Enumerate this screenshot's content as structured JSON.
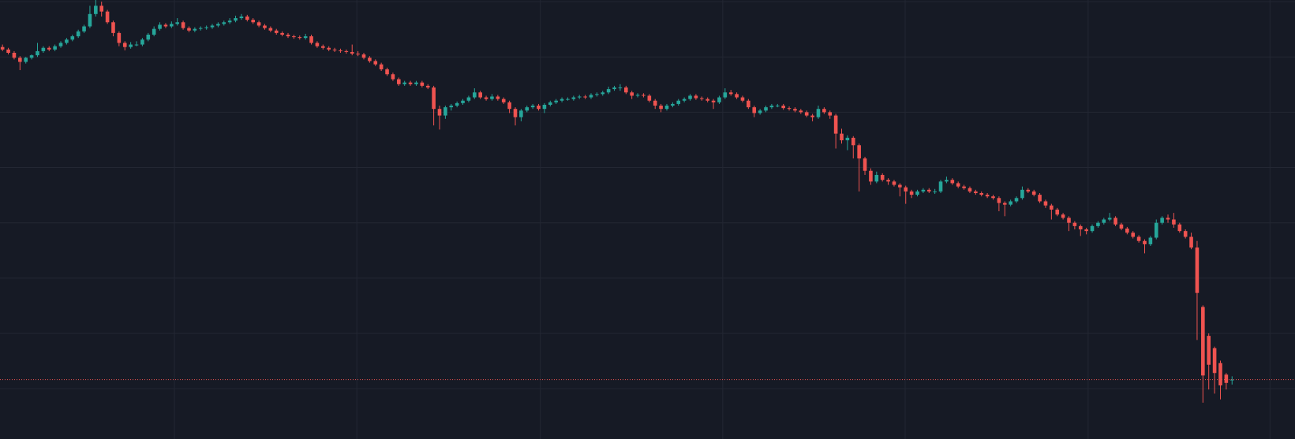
{
  "chart_data": {
    "type": "candlestick",
    "up_color": "#26a69a",
    "down_color": "#ef5350",
    "grid": true,
    "grid_color": "#232733",
    "last_price": 72,
    "last_price_color": "#ef5350",
    "xlim": [
      -0.43,
      221.8
    ],
    "xticks": [
      29.5,
      60.8,
      92.3,
      123.6,
      154.9,
      186.3,
      217.5
    ],
    "ylim": [
      0,
      532
    ],
    "yticks": [
      61,
      128,
      195,
      262,
      329,
      396,
      463,
      530
    ],
    "candles": [
      [
        475,
        478,
        470,
        472
      ],
      [
        472,
        474,
        466,
        468
      ],
      [
        468,
        470,
        460,
        462
      ],
      [
        462,
        464,
        447,
        457
      ],
      [
        457,
        463,
        455,
        462
      ],
      [
        462,
        466,
        460,
        465
      ],
      [
        465,
        480,
        463,
        470
      ],
      [
        470,
        476,
        468,
        474
      ],
      [
        474,
        476,
        470,
        472
      ],
      [
        472,
        478,
        470,
        476
      ],
      [
        476,
        482,
        474,
        480
      ],
      [
        480,
        486,
        478,
        484
      ],
      [
        484,
        490,
        482,
        488
      ],
      [
        488,
        496,
        486,
        494
      ],
      [
        494,
        502,
        492,
        500
      ],
      [
        500,
        525,
        498,
        515
      ],
      [
        515,
        532,
        512,
        525
      ],
      [
        525,
        530,
        512,
        518
      ],
      [
        518,
        520,
        503,
        505
      ],
      [
        505,
        507,
        488,
        492
      ],
      [
        492,
        494,
        476,
        480
      ],
      [
        480,
        482,
        471,
        475
      ],
      [
        475,
        481,
        473,
        478
      ],
      [
        478,
        482,
        476,
        478
      ],
      [
        478,
        486,
        476,
        484
      ],
      [
        484,
        492,
        482,
        490
      ],
      [
        490,
        500,
        488,
        497
      ],
      [
        497,
        505,
        495,
        502
      ],
      [
        502,
        504,
        498,
        500
      ],
      [
        500,
        506,
        498,
        503
      ],
      [
        503,
        510,
        501,
        505
      ],
      [
        505,
        507,
        496,
        498
      ],
      [
        498,
        500,
        493,
        495
      ],
      [
        495,
        499,
        493,
        497
      ],
      [
        497,
        500,
        495,
        498
      ],
      [
        498,
        501,
        496,
        499
      ],
      [
        499,
        503,
        497,
        501
      ],
      [
        501,
        505,
        499,
        503
      ],
      [
        503,
        507,
        501,
        505
      ],
      [
        505,
        510,
        503,
        507
      ],
      [
        507,
        513,
        505,
        510
      ],
      [
        510,
        515,
        508,
        512
      ],
      [
        512,
        514,
        506,
        508
      ],
      [
        508,
        510,
        503,
        505
      ],
      [
        505,
        507,
        499,
        501
      ],
      [
        501,
        503,
        496,
        498
      ],
      [
        498,
        500,
        493,
        495
      ],
      [
        495,
        497,
        490,
        492
      ],
      [
        492,
        494,
        488,
        490
      ],
      [
        490,
        492,
        486,
        488
      ],
      [
        488,
        490,
        485,
        487
      ],
      [
        487,
        489,
        484,
        486
      ],
      [
        486,
        491,
        484,
        488
      ],
      [
        488,
        490,
        478,
        480
      ],
      [
        480,
        482,
        474,
        476
      ],
      [
        476,
        478,
        472,
        474
      ],
      [
        474,
        476,
        470,
        472
      ],
      [
        472,
        474,
        469,
        471
      ],
      [
        471,
        473,
        468,
        470
      ],
      [
        470,
        472,
        467,
        469
      ],
      [
        469,
        478,
        465,
        467
      ],
      [
        467,
        470,
        464,
        466
      ],
      [
        466,
        468,
        460,
        462
      ],
      [
        462,
        464,
        456,
        458
      ],
      [
        458,
        460,
        452,
        454
      ],
      [
        454,
        456,
        446,
        448
      ],
      [
        448,
        450,
        440,
        442
      ],
      [
        442,
        444,
        434,
        436
      ],
      [
        436,
        438,
        428,
        430
      ],
      [
        430,
        434,
        428,
        432
      ],
      [
        432,
        434,
        428,
        430
      ],
      [
        430,
        434,
        428,
        432
      ],
      [
        432,
        434,
        426,
        428
      ],
      [
        428,
        430,
        424,
        426
      ],
      [
        426,
        428,
        380,
        400
      ],
      [
        400,
        404,
        375,
        392
      ],
      [
        392,
        404,
        388,
        402
      ],
      [
        402,
        406,
        398,
        404
      ],
      [
        404,
        409,
        402,
        407
      ],
      [
        407,
        412,
        405,
        410
      ],
      [
        410,
        416,
        408,
        414
      ],
      [
        414,
        425,
        412,
        420
      ],
      [
        420,
        422,
        412,
        414
      ],
      [
        414,
        416,
        410,
        412
      ],
      [
        412,
        418,
        410,
        415
      ],
      [
        415,
        417,
        410,
        412
      ],
      [
        412,
        414,
        406,
        408
      ],
      [
        408,
        410,
        395,
        400
      ],
      [
        400,
        402,
        380,
        390
      ],
      [
        390,
        400,
        385,
        398
      ],
      [
        398,
        404,
        396,
        402
      ],
      [
        402,
        406,
        400,
        404
      ],
      [
        404,
        406,
        398,
        400
      ],
      [
        400,
        407,
        395,
        405
      ],
      [
        405,
        410,
        403,
        408
      ],
      [
        408,
        412,
        406,
        410
      ],
      [
        410,
        414,
        408,
        412
      ],
      [
        412,
        414,
        410,
        412
      ],
      [
        412,
        416,
        410,
        414
      ],
      [
        414,
        417,
        412,
        415
      ],
      [
        415,
        417,
        412,
        414
      ],
      [
        414,
        419,
        412,
        417
      ],
      [
        417,
        420,
        415,
        418
      ],
      [
        418,
        422,
        416,
        420
      ],
      [
        420,
        427,
        418,
        424
      ],
      [
        424,
        428,
        422,
        426
      ],
      [
        426,
        430,
        422,
        426
      ],
      [
        426,
        428,
        418,
        420
      ],
      [
        420,
        422,
        412,
        416
      ],
      [
        416,
        419,
        414,
        417
      ],
      [
        417,
        419,
        414,
        416
      ],
      [
        416,
        418,
        408,
        410
      ],
      [
        410,
        412,
        400,
        404
      ],
      [
        404,
        406,
        396,
        400
      ],
      [
        400,
        406,
        398,
        404
      ],
      [
        404,
        408,
        402,
        406
      ],
      [
        406,
        412,
        404,
        410
      ],
      [
        410,
        414,
        408,
        412
      ],
      [
        412,
        418,
        410,
        416
      ],
      [
        416,
        418,
        411,
        413
      ],
      [
        413,
        415,
        410,
        412
      ],
      [
        412,
        414,
        408,
        410
      ],
      [
        410,
        412,
        400,
        408
      ],
      [
        408,
        416,
        406,
        414
      ],
      [
        414,
        425,
        412,
        420
      ],
      [
        420,
        423,
        416,
        418
      ],
      [
        418,
        420,
        412,
        414
      ],
      [
        414,
        416,
        408,
        410
      ],
      [
        410,
        412,
        400,
        402
      ],
      [
        402,
        404,
        390,
        395
      ],
      [
        395,
        400,
        393,
        398
      ],
      [
        398,
        404,
        396,
        402
      ],
      [
        402,
        406,
        400,
        404
      ],
      [
        404,
        406,
        402,
        404
      ],
      [
        404,
        406,
        399,
        401
      ],
      [
        401,
        403,
        398,
        400
      ],
      [
        400,
        402,
        396,
        398
      ],
      [
        398,
        400,
        394,
        396
      ],
      [
        396,
        398,
        390,
        392
      ],
      [
        392,
        394,
        385,
        390
      ],
      [
        390,
        404,
        388,
        400
      ],
      [
        400,
        402,
        394,
        396
      ],
      [
        396,
        398,
        388,
        392
      ],
      [
        392,
        394,
        352,
        370
      ],
      [
        370,
        376,
        358,
        362
      ],
      [
        362,
        368,
        350,
        365
      ],
      [
        365,
        367,
        340,
        356
      ],
      [
        356,
        358,
        300,
        340
      ],
      [
        340,
        342,
        320,
        325
      ],
      [
        325,
        328,
        308,
        312
      ],
      [
        312,
        324,
        310,
        320
      ],
      [
        320,
        322,
        312,
        314
      ],
      [
        314,
        316,
        308,
        312
      ],
      [
        312,
        314,
        306,
        308
      ],
      [
        308,
        310,
        294,
        305
      ],
      [
        305,
        307,
        285,
        300
      ],
      [
        300,
        302,
        292,
        296
      ],
      [
        296,
        302,
        294,
        300
      ],
      [
        300,
        304,
        298,
        302
      ],
      [
        302,
        304,
        298,
        300
      ],
      [
        300,
        303,
        297,
        300
      ],
      [
        300,
        314,
        298,
        312
      ],
      [
        312,
        318,
        310,
        314
      ],
      [
        314,
        316,
        308,
        310
      ],
      [
        310,
        312,
        304,
        306
      ],
      [
        306,
        308,
        302,
        304
      ],
      [
        304,
        306,
        298,
        300
      ],
      [
        300,
        302,
        296,
        298
      ],
      [
        298,
        300,
        294,
        296
      ],
      [
        296,
        298,
        292,
        294
      ],
      [
        294,
        296,
        290,
        292
      ],
      [
        292,
        294,
        276,
        286
      ],
      [
        286,
        288,
        270,
        284
      ],
      [
        284,
        290,
        282,
        288
      ],
      [
        288,
        294,
        286,
        292
      ],
      [
        292,
        306,
        290,
        302
      ],
      [
        302,
        304,
        298,
        300
      ],
      [
        300,
        302,
        294,
        296
      ],
      [
        296,
        298,
        286,
        288
      ],
      [
        288,
        290,
        280,
        283
      ],
      [
        283,
        285,
        266,
        278
      ],
      [
        278,
        280,
        270,
        272
      ],
      [
        272,
        274,
        266,
        268
      ],
      [
        268,
        270,
        252,
        262
      ],
      [
        262,
        264,
        254,
        258
      ],
      [
        258,
        260,
        246,
        254
      ],
      [
        254,
        256,
        248,
        252
      ],
      [
        252,
        260,
        250,
        258
      ],
      [
        258,
        264,
        256,
        262
      ],
      [
        262,
        268,
        260,
        266
      ],
      [
        266,
        274,
        264,
        268
      ],
      [
        268,
        270,
        258,
        260
      ],
      [
        260,
        262,
        253,
        255
      ],
      [
        255,
        257,
        248,
        250
      ],
      [
        250,
        252,
        243,
        245
      ],
      [
        245,
        247,
        238,
        240
      ],
      [
        240,
        242,
        225,
        236
      ],
      [
        236,
        246,
        234,
        244
      ],
      [
        244,
        266,
        242,
        262
      ],
      [
        262,
        270,
        260,
        268
      ],
      [
        268,
        272,
        262,
        266
      ],
      [
        266,
        274,
        256,
        260
      ],
      [
        260,
        262,
        250,
        252
      ],
      [
        252,
        254,
        243,
        245
      ],
      [
        245,
        250,
        230,
        232
      ],
      [
        232,
        240,
        120,
        177
      ],
      [
        160,
        162,
        44,
        77
      ],
      [
        125,
        128,
        60,
        90
      ],
      [
        110,
        112,
        55,
        80
      ],
      [
        92,
        95,
        48,
        65
      ],
      [
        78,
        80,
        60,
        68
      ],
      [
        72,
        76,
        66,
        72
      ]
    ]
  }
}
